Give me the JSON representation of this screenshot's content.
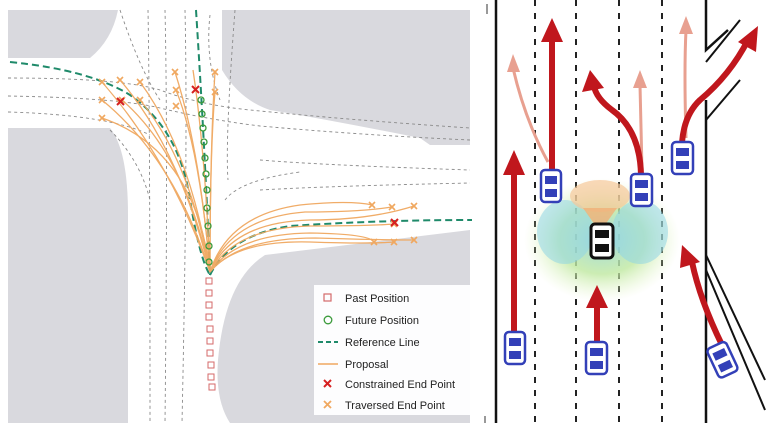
{
  "legend": {
    "items": [
      {
        "key": "past",
        "label": "Past Position",
        "color": "#d46a6a"
      },
      {
        "key": "future",
        "label": "Future Position",
        "color": "#3a9a3a"
      },
      {
        "key": "reference",
        "label": "Reference Line",
        "color": "#1f8a6a"
      },
      {
        "key": "proposal",
        "label": "Proposal",
        "color": "#f0a860"
      },
      {
        "key": "constrained",
        "label": "Constrained End Point",
        "color": "#d62020"
      },
      {
        "key": "traversed",
        "label": "Traversed End Point",
        "color": "#f0a860"
      }
    ]
  },
  "colors": {
    "road_block": "#d9d9de",
    "lane_dash": "#8a8a8a",
    "arrow_red": "#c0171d",
    "arrow_faded": "#e8a090",
    "car_blue": "#3340b8",
    "ego_car": "#111111",
    "attention_green": "#bfe8a0",
    "attention_teal": "#9ad7e0"
  },
  "icons": {
    "ego": "black-car-icon",
    "other": "blue-car-icon",
    "arrow": "red-arrow-icon"
  }
}
